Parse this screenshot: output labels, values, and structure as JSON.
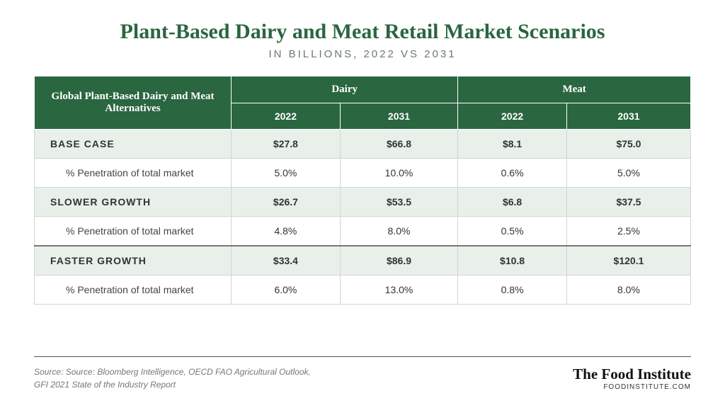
{
  "title": "Plant-Based Dairy and Meat Retail Market Scenarios",
  "subtitle": "IN BILLIONS, 2022 VS 2031",
  "table": {
    "row_header": "Global Plant-Based Dairy and Meat Alternatives",
    "group_labels": [
      "Dairy",
      "Meat"
    ],
    "year_labels": [
      "2022",
      "2031",
      "2022",
      "2031"
    ],
    "detail_label": "% Penetration of total market",
    "scenarios": [
      {
        "name": "BASE CASE",
        "values": [
          "$27.8",
          "$66.8",
          "$8.1",
          "$75.0"
        ],
        "penetration": [
          "5.0%",
          "10.0%",
          "0.6%",
          "5.0%"
        ]
      },
      {
        "name": "SLOWER GROWTH",
        "values": [
          "$26.7",
          "$53.5",
          "$6.8",
          "$37.5"
        ],
        "penetration": [
          "4.8%",
          "8.0%",
          "0.5%",
          "2.5%"
        ]
      },
      {
        "name": "FASTER GROWTH",
        "values": [
          "$33.4",
          "$86.9",
          "$10.8",
          "$120.1"
        ],
        "penetration": [
          "6.0%",
          "13.0%",
          "0.8%",
          "8.0%"
        ]
      }
    ]
  },
  "footer": {
    "source_line1": "Source: Source: Bloomberg Intelligence, OECD FAO Agricultural Outlook,",
    "source_line2": "GFI 2021 State of the Industry Report",
    "brand_name": "The Food Institute",
    "brand_url": "FOODINSTITUTE.COM"
  },
  "styling": {
    "header_bg": "#2a6640",
    "header_text": "#ffffff",
    "scenario_row_bg": "#e9efe9",
    "detail_row_bg": "#ffffff",
    "border_color": "#d0d6d2",
    "title_color": "#2a6640",
    "subtitle_color": "#6b7a70",
    "source_color": "#777777"
  }
}
